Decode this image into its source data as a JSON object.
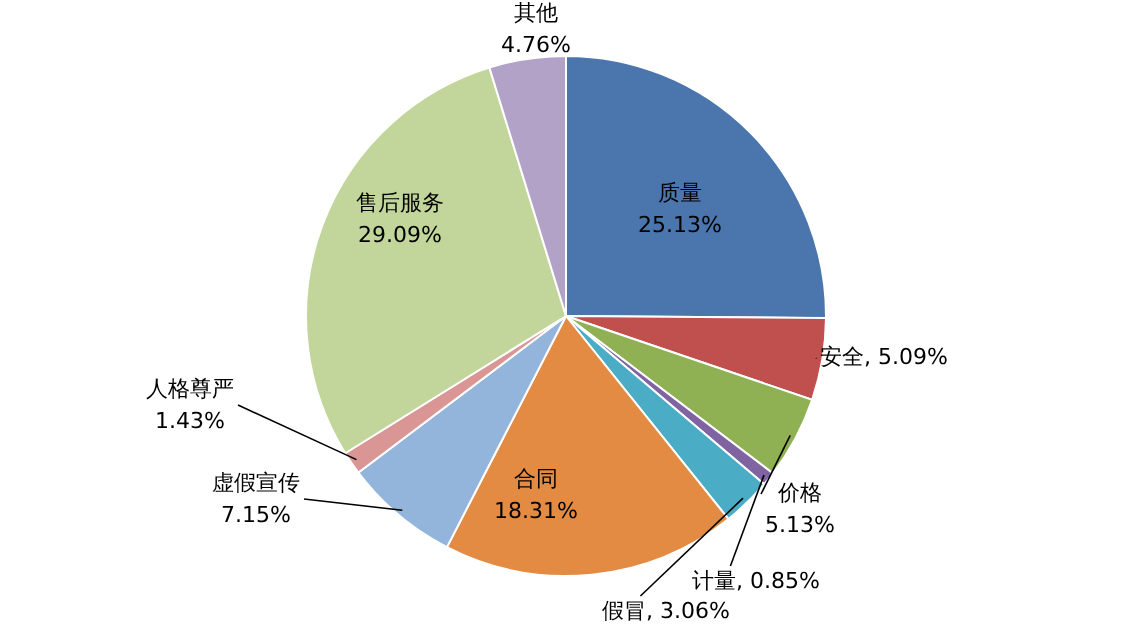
{
  "chart_data": {
    "type": "pie",
    "categories": [
      "质量",
      "安全",
      "价格",
      "计量",
      "假冒",
      "合同",
      "虚假宣传",
      "人格尊严",
      "售后服务",
      "其他"
    ],
    "values": [
      25.13,
      5.09,
      5.13,
      0.85,
      3.06,
      18.31,
      7.15,
      1.43,
      29.09,
      4.76
    ],
    "value_labels": [
      "25.13%",
      "5.09%",
      "5.13%",
      "0.85%",
      "3.06%",
      "18.31%",
      "7.15%",
      "1.43%",
      "29.09%",
      "4.76%"
    ],
    "colors": [
      "#4a75ad",
      "#c0504d",
      "#8fb153",
      "#8064a2",
      "#4bacc6",
      "#e38b43",
      "#93b4db",
      "#d99694",
      "#c2d69b",
      "#b3a2c7"
    ]
  }
}
